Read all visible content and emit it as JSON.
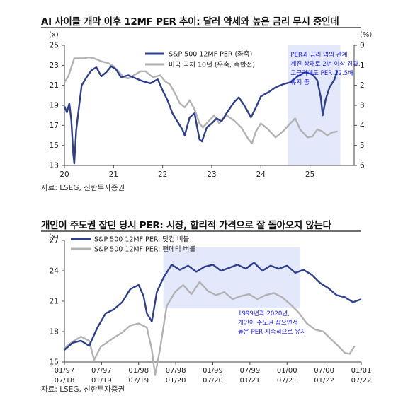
{
  "chart_data": [
    {
      "type": "line",
      "title": "AI 사이클 개막 이후 12MF PER 추이: 달러 약세와 높은 금리 무시 중인데",
      "left_axis_unit": "(x)",
      "right_axis_unit": "(%)",
      "ylim_left": [
        13,
        25
      ],
      "yticks_left": [
        13,
        15,
        17,
        19,
        21,
        23,
        25
      ],
      "ylim_right": [
        6,
        0
      ],
      "right_axis_inverted": true,
      "yticks_right": [
        0,
        1,
        2,
        3,
        4,
        5,
        6
      ],
      "x_tick_labels": [
        "20",
        "21",
        "22",
        "23",
        "24",
        "25"
      ],
      "source": "자료: LSEG, 신한투자증권",
      "legend_position": "top-center",
      "series": [
        {
          "name": "S&P 500 12MF PER (좌축)",
          "color": "#2e3f8f",
          "axis": "left",
          "points": [
            [
              2020.0,
              18.9
            ],
            [
              2020.05,
              18.3
            ],
            [
              2020.1,
              19.2
            ],
            [
              2020.14,
              17.5
            ],
            [
              2020.18,
              14.1
            ],
            [
              2020.2,
              13.2
            ],
            [
              2020.24,
              16.5
            ],
            [
              2020.3,
              19.0
            ],
            [
              2020.35,
              21.0
            ],
            [
              2020.45,
              21.8
            ],
            [
              2020.55,
              22.5
            ],
            [
              2020.65,
              22.8
            ],
            [
              2020.75,
              21.9
            ],
            [
              2020.85,
              22.3
            ],
            [
              2020.95,
              22.9
            ],
            [
              2021.05,
              22.6
            ],
            [
              2021.15,
              21.8
            ],
            [
              2021.3,
              22.0
            ],
            [
              2021.45,
              21.7
            ],
            [
              2021.6,
              21.4
            ],
            [
              2021.75,
              21.2
            ],
            [
              2021.9,
              21.6
            ],
            [
              2022.0,
              20.5
            ],
            [
              2022.1,
              19.5
            ],
            [
              2022.2,
              18.2
            ],
            [
              2022.3,
              17.4
            ],
            [
              2022.4,
              16.6
            ],
            [
              2022.45,
              16.0
            ],
            [
              2022.55,
              17.8
            ],
            [
              2022.65,
              18.2
            ],
            [
              2022.75,
              15.6
            ],
            [
              2022.8,
              15.4
            ],
            [
              2022.9,
              16.8
            ],
            [
              2023.0,
              17.2
            ],
            [
              2023.1,
              17.7
            ],
            [
              2023.2,
              17.4
            ],
            [
              2023.3,
              18.2
            ],
            [
              2023.45,
              19.3
            ],
            [
              2023.55,
              19.8
            ],
            [
              2023.65,
              19.1
            ],
            [
              2023.8,
              17.8
            ],
            [
              2023.9,
              18.8
            ],
            [
              2024.0,
              19.9
            ],
            [
              2024.15,
              20.3
            ],
            [
              2024.3,
              20.8
            ],
            [
              2024.45,
              21.1
            ],
            [
              2024.6,
              21.3
            ],
            [
              2024.75,
              21.9
            ],
            [
              2024.9,
              22.3
            ],
            [
              2025.05,
              22.1
            ],
            [
              2025.15,
              21.5
            ],
            [
              2025.22,
              19.8
            ],
            [
              2025.26,
              18.0
            ],
            [
              2025.32,
              19.6
            ],
            [
              2025.4,
              20.8
            ],
            [
              2025.5,
              21.6
            ],
            [
              2025.56,
              22.5
            ]
          ]
        },
        {
          "name": "미국 국채 10년 (우축, 축반전)",
          "color": "#b2b2b2",
          "axis": "right",
          "points": [
            [
              2020.0,
              1.85
            ],
            [
              2020.08,
              1.55
            ],
            [
              2020.16,
              0.95
            ],
            [
              2020.2,
              0.65
            ],
            [
              2020.3,
              0.65
            ],
            [
              2020.4,
              0.65
            ],
            [
              2020.5,
              0.6
            ],
            [
              2020.6,
              0.65
            ],
            [
              2020.75,
              0.8
            ],
            [
              2020.9,
              0.9
            ],
            [
              2021.0,
              1.05
            ],
            [
              2021.1,
              1.3
            ],
            [
              2021.2,
              1.6
            ],
            [
              2021.3,
              1.65
            ],
            [
              2021.45,
              1.45
            ],
            [
              2021.55,
              1.3
            ],
            [
              2021.65,
              1.3
            ],
            [
              2021.8,
              1.6
            ],
            [
              2021.95,
              1.5
            ],
            [
              2022.05,
              1.8
            ],
            [
              2022.15,
              1.95
            ],
            [
              2022.25,
              2.4
            ],
            [
              2022.35,
              2.9
            ],
            [
              2022.45,
              3.1
            ],
            [
              2022.55,
              2.75
            ],
            [
              2022.65,
              3.2
            ],
            [
              2022.75,
              3.9
            ],
            [
              2022.82,
              4.1
            ],
            [
              2022.95,
              3.75
            ],
            [
              2023.05,
              3.5
            ],
            [
              2023.15,
              3.9
            ],
            [
              2023.3,
              3.5
            ],
            [
              2023.45,
              3.75
            ],
            [
              2023.6,
              4.1
            ],
            [
              2023.75,
              4.7
            ],
            [
              2023.82,
              4.9
            ],
            [
              2023.9,
              4.3
            ],
            [
              2024.0,
              3.9
            ],
            [
              2024.15,
              4.2
            ],
            [
              2024.3,
              4.6
            ],
            [
              2024.45,
              4.3
            ],
            [
              2024.6,
              3.9
            ],
            [
              2024.7,
              3.65
            ],
            [
              2024.8,
              4.2
            ],
            [
              2024.95,
              4.6
            ],
            [
              2025.05,
              4.55
            ],
            [
              2025.15,
              4.2
            ],
            [
              2025.25,
              4.3
            ],
            [
              2025.35,
              4.5
            ],
            [
              2025.45,
              4.35
            ],
            [
              2025.56,
              4.3
            ]
          ]
        }
      ],
      "highlight": {
        "x_start": 2024.55,
        "x_end": 2025.62,
        "color": "#e3e8fb",
        "text_lines": [
          "PER과 금리 역의 관계",
          "깨진 상태로 2년 이상 경과.",
          "고금리에도 PER 22.5배",
          "유지 중"
        ],
        "text_color": "#1a1aff"
      }
    },
    {
      "type": "line",
      "title": "개인이 주도권 잡던 당시 PER: 시장, 합리적 가격으로 잘 돌아오지 않는다",
      "left_axis_unit": "(x)",
      "ylim": [
        15,
        27
      ],
      "yticks": [
        15,
        18,
        21,
        24,
        27
      ],
      "x_tick_labels_top": [
        "01/97",
        "07/97",
        "01/98",
        "07/98",
        "01/99",
        "07/99",
        "01/00",
        "07/00",
        "01/01"
      ],
      "x_tick_labels_bottom": [
        "07/18",
        "01/19",
        "07/19",
        "01/20",
        "07/20",
        "01/21",
        "07/21",
        "01/22",
        "07/22"
      ],
      "source": "자료: LSEG, 신한투자증권",
      "legend_position": "top-left",
      "series": [
        {
          "name": "S&P 500 12MF PER: 닷컴 버블",
          "color": "#2e3f8f",
          "points": [
            [
              0,
              16.2
            ],
            [
              0.05,
              16.9
            ],
            [
              0.1,
              17.1
            ],
            [
              0.15,
              16.6
            ],
            [
              0.2,
              18.4
            ],
            [
              0.25,
              19.8
            ],
            [
              0.3,
              20.2
            ],
            [
              0.35,
              20.9
            ],
            [
              0.4,
              22.2
            ],
            [
              0.45,
              22.6
            ],
            [
              0.48,
              21.5
            ],
            [
              0.5,
              19.8
            ],
            [
              0.53,
              19.0
            ],
            [
              0.56,
              21.9
            ],
            [
              0.6,
              23.3
            ],
            [
              0.65,
              24.6
            ],
            [
              0.7,
              24.1
            ],
            [
              0.75,
              24.5
            ],
            [
              0.8,
              23.9
            ],
            [
              0.85,
              24.4
            ],
            [
              0.9,
              24.6
            ],
            [
              0.95,
              24.0
            ],
            [
              1.0,
              24.3
            ],
            [
              1.05,
              24.6
            ],
            [
              1.1,
              24.2
            ],
            [
              1.15,
              24.8
            ],
            [
              1.2,
              24.0
            ],
            [
              1.25,
              24.5
            ],
            [
              1.3,
              24.2
            ],
            [
              1.35,
              24.5
            ],
            [
              1.4,
              23.8
            ],
            [
              1.45,
              24.1
            ],
            [
              1.5,
              23.6
            ],
            [
              1.55,
              22.8
            ],
            [
              1.6,
              22.3
            ],
            [
              1.65,
              21.6
            ],
            [
              1.7,
              21.4
            ],
            [
              1.75,
              20.9
            ],
            [
              1.8,
              21.2
            ]
          ]
        },
        {
          "name": "S&P 500 12MF PER: 팬데믹 버블",
          "color": "#b2b2b2",
          "points": [
            [
              0,
              16.4
            ],
            [
              0.05,
              17.0
            ],
            [
              0.1,
              17.5
            ],
            [
              0.15,
              17.1
            ],
            [
              0.18,
              15.2
            ],
            [
              0.22,
              16.5
            ],
            [
              0.3,
              17.4
            ],
            [
              0.35,
              17.9
            ],
            [
              0.4,
              18.6
            ],
            [
              0.45,
              18.8
            ],
            [
              0.5,
              18.4
            ],
            [
              0.53,
              16.2
            ],
            [
              0.55,
              13.7
            ],
            [
              0.58,
              16.3
            ],
            [
              0.62,
              20.5
            ],
            [
              0.67,
              21.9
            ],
            [
              0.72,
              22.6
            ],
            [
              0.77,
              21.7
            ],
            [
              0.82,
              22.9
            ],
            [
              0.87,
              22.0
            ],
            [
              0.92,
              21.6
            ],
            [
              0.97,
              21.9
            ],
            [
              1.02,
              21.2
            ],
            [
              1.07,
              21.5
            ],
            [
              1.12,
              21.7
            ],
            [
              1.17,
              21.2
            ],
            [
              1.22,
              21.6
            ],
            [
              1.27,
              21.8
            ],
            [
              1.32,
              21.4
            ],
            [
              1.37,
              20.7
            ],
            [
              1.42,
              19.9
            ],
            [
              1.47,
              18.8
            ],
            [
              1.52,
              18.2
            ],
            [
              1.57,
              18.0
            ],
            [
              1.62,
              17.2
            ],
            [
              1.66,
              16.6
            ],
            [
              1.7,
              15.9
            ],
            [
              1.73,
              15.8
            ],
            [
              1.76,
              16.6
            ]
          ]
        }
      ],
      "highlight": {
        "x_start": 0.6,
        "x_end": 1.43,
        "color": "#e3e8fb",
        "text_lines": [
          "1999년과 2020년,",
          "개인이 주도권 잡으면서",
          "높은 PER 지속적으로 유지"
        ],
        "text_color": "#1a1aff"
      }
    }
  ]
}
